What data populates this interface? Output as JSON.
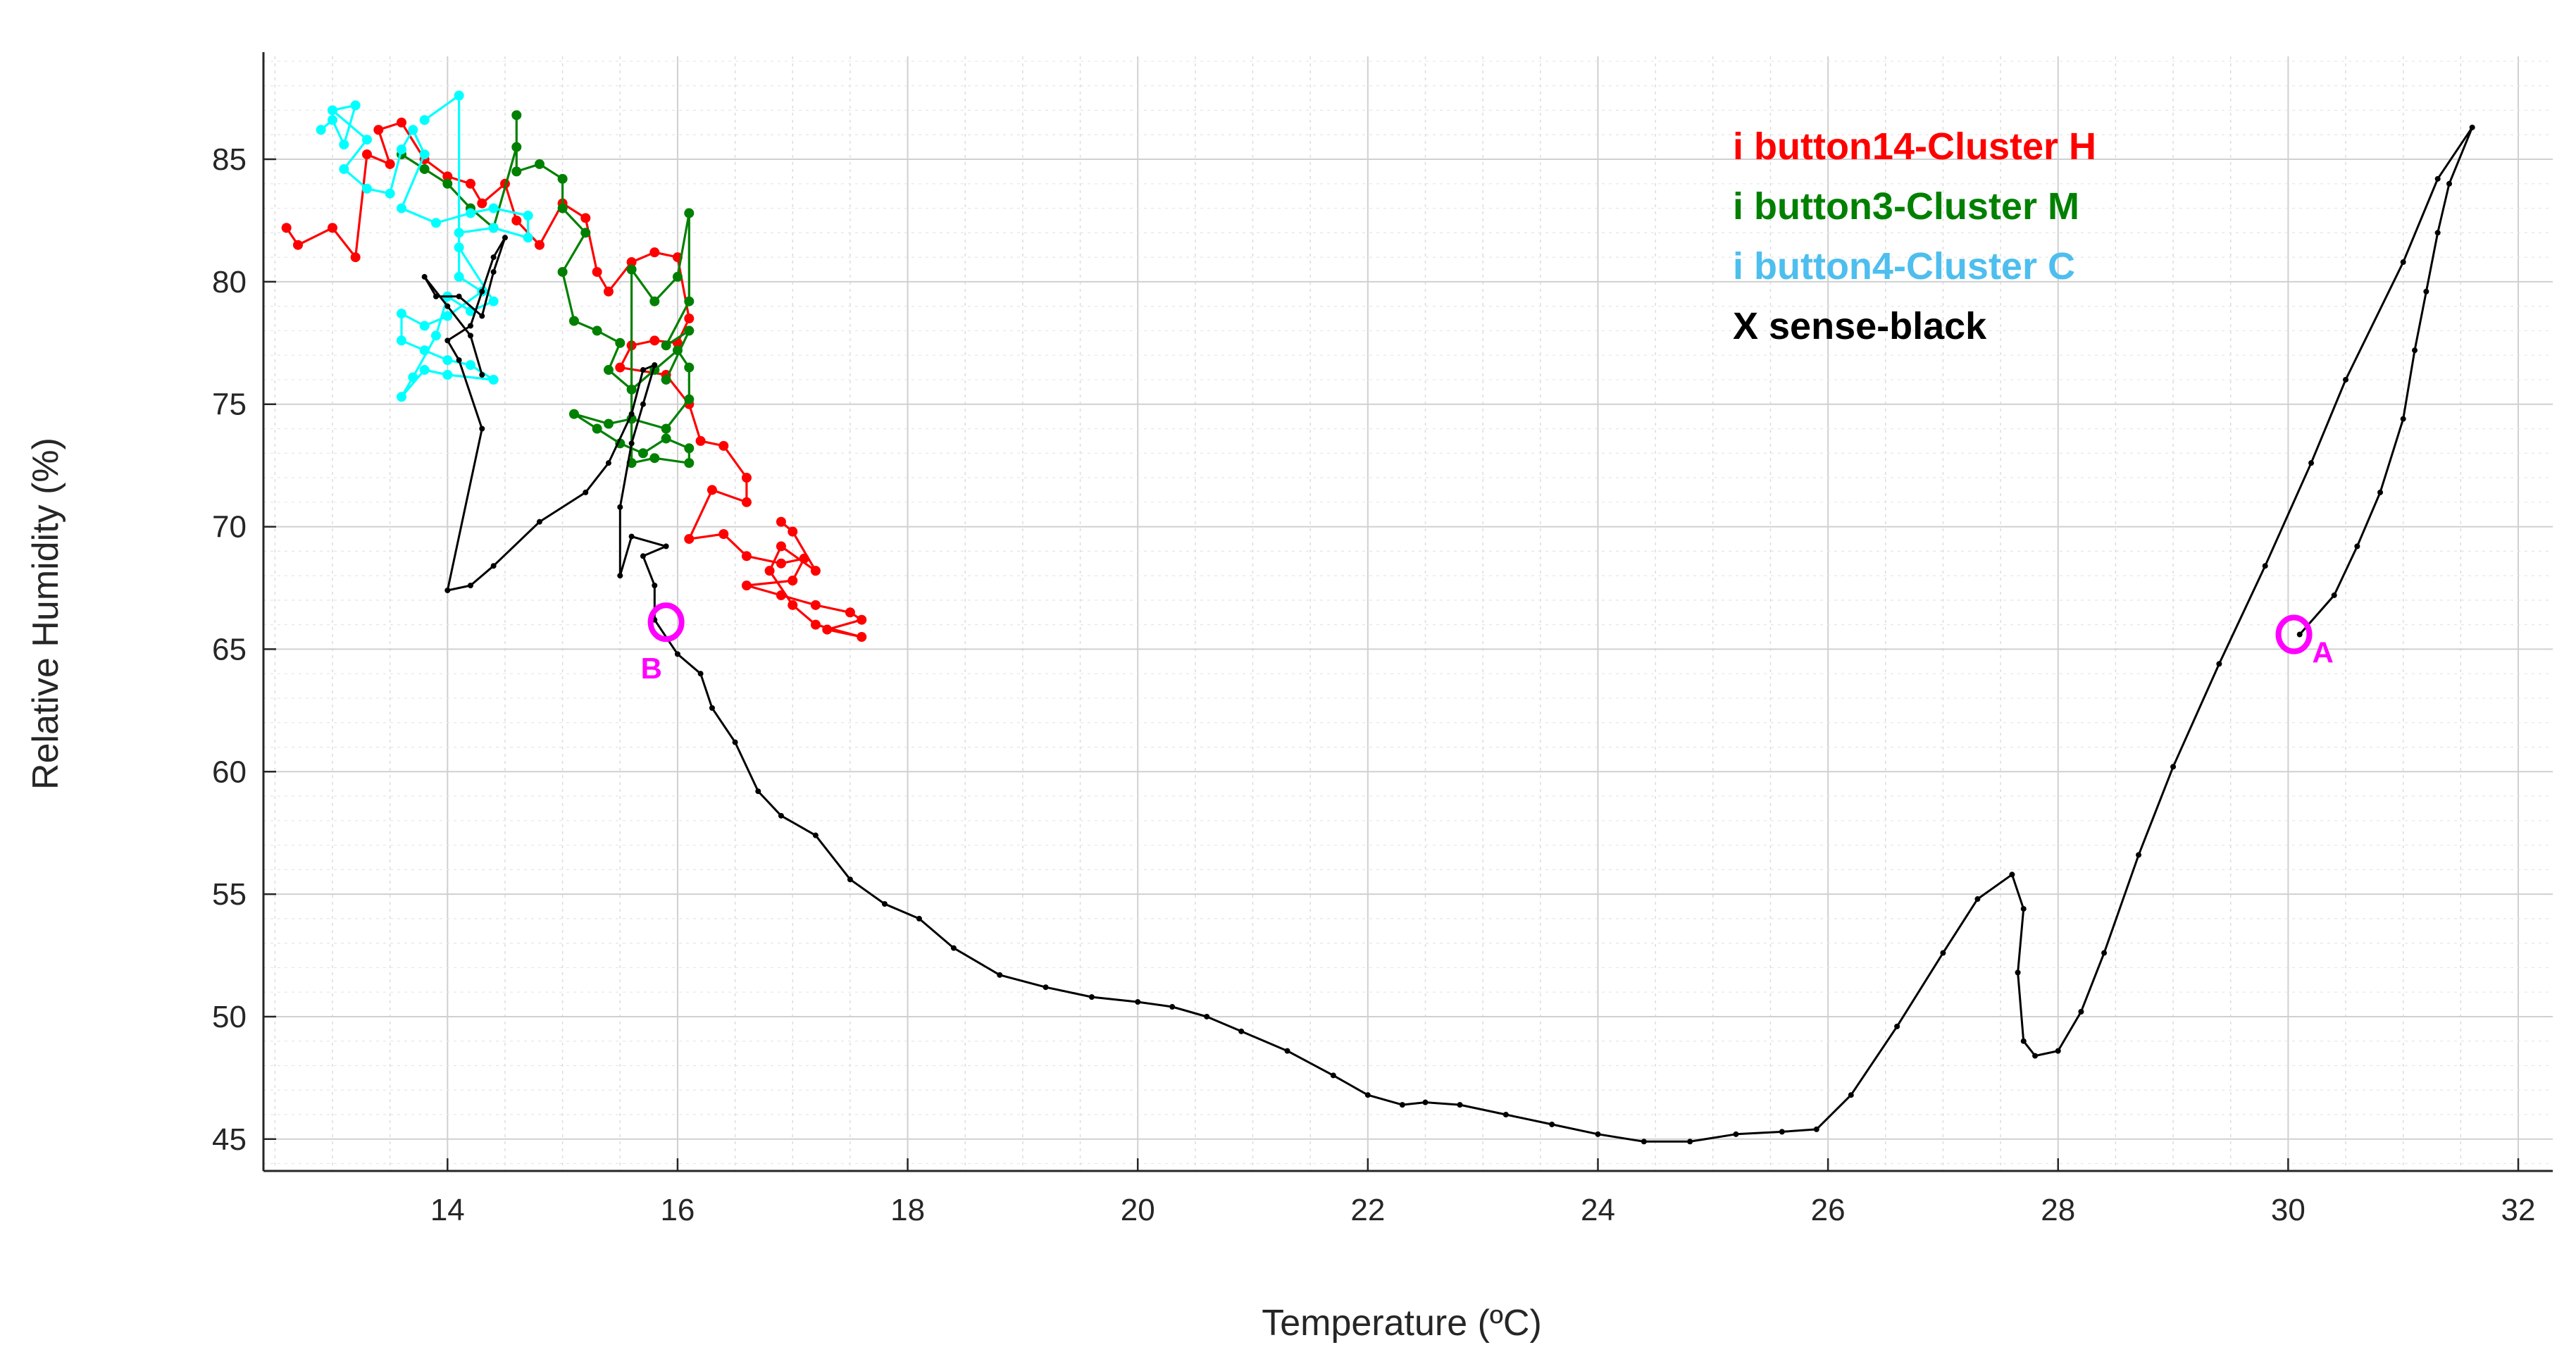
{
  "chart_data": {
    "type": "scatter",
    "title": "",
    "xlabel": "Temperature (ºC)",
    "ylabel": "Relative Humidity (%)",
    "xlim": [
      12.4,
      32.3
    ],
    "ylim": [
      43.7,
      89.2
    ],
    "xticks": [
      14,
      16,
      18,
      20,
      22,
      24,
      26,
      28,
      30,
      32
    ],
    "yticks": [
      45,
      50,
      55,
      60,
      65,
      70,
      75,
      80,
      85
    ],
    "xminor_step": 0.5,
    "ymajor_grid_step": 5,
    "grid": true,
    "legend_position": "top-right",
    "series": [
      {
        "name": "i button14-Cluster H",
        "color": "#ff0000",
        "points": [
          [
            12.6,
            82.2
          ],
          [
            12.7,
            81.5
          ],
          [
            13.0,
            82.2
          ],
          [
            13.2,
            81.0
          ],
          [
            13.3,
            85.2
          ],
          [
            13.5,
            84.8
          ],
          [
            13.4,
            86.2
          ],
          [
            13.6,
            86.5
          ],
          [
            13.8,
            85.0
          ],
          [
            14.0,
            84.3
          ],
          [
            14.2,
            84.0
          ],
          [
            14.3,
            83.2
          ],
          [
            14.5,
            84.0
          ],
          [
            14.6,
            82.5
          ],
          [
            14.8,
            81.5
          ],
          [
            15.0,
            83.2
          ],
          [
            15.2,
            82.6
          ],
          [
            15.3,
            80.4
          ],
          [
            15.4,
            79.6
          ],
          [
            15.6,
            80.8
          ],
          [
            15.8,
            81.2
          ],
          [
            16.0,
            81.0
          ],
          [
            16.1,
            78.5
          ],
          [
            16.0,
            77.5
          ],
          [
            15.8,
            77.6
          ],
          [
            15.6,
            77.4
          ],
          [
            15.5,
            76.5
          ],
          [
            15.9,
            76.2
          ],
          [
            16.1,
            75.0
          ],
          [
            16.2,
            73.5
          ],
          [
            16.4,
            73.3
          ],
          [
            16.6,
            72.0
          ],
          [
            16.6,
            71.0
          ],
          [
            16.3,
            71.5
          ],
          [
            16.1,
            69.5
          ],
          [
            16.4,
            69.7
          ],
          [
            16.6,
            68.8
          ],
          [
            16.9,
            68.5
          ],
          [
            17.1,
            68.7
          ],
          [
            17.0,
            67.8
          ],
          [
            16.6,
            67.6
          ],
          [
            16.9,
            67.2
          ],
          [
            17.2,
            66.8
          ],
          [
            17.5,
            66.5
          ],
          [
            17.6,
            66.2
          ],
          [
            17.3,
            65.8
          ],
          [
            17.6,
            65.5
          ],
          [
            17.2,
            66.0
          ],
          [
            17.0,
            66.8
          ],
          [
            16.8,
            68.2
          ],
          [
            16.9,
            69.2
          ],
          [
            17.2,
            68.2
          ],
          [
            17.0,
            69.8
          ],
          [
            16.9,
            70.2
          ]
        ]
      },
      {
        "name": "i button3-Cluster M",
        "color": "#008000",
        "points": [
          [
            13.6,
            85.2
          ],
          [
            13.8,
            84.6
          ],
          [
            14.0,
            84.0
          ],
          [
            14.2,
            83.0
          ],
          [
            14.4,
            82.2
          ],
          [
            14.6,
            85.5
          ],
          [
            14.6,
            86.8
          ],
          [
            14.6,
            84.5
          ],
          [
            14.8,
            84.8
          ],
          [
            15.0,
            84.2
          ],
          [
            15.0,
            83.0
          ],
          [
            15.2,
            82.0
          ],
          [
            15.0,
            80.4
          ],
          [
            15.1,
            78.4
          ],
          [
            15.3,
            78.0
          ],
          [
            15.5,
            77.5
          ],
          [
            15.4,
            76.4
          ],
          [
            15.6,
            75.6
          ],
          [
            15.8,
            76.4
          ],
          [
            16.0,
            77.2
          ],
          [
            16.1,
            76.5
          ],
          [
            16.1,
            75.2
          ],
          [
            15.9,
            74.0
          ],
          [
            15.6,
            74.4
          ],
          [
            15.4,
            74.2
          ],
          [
            15.1,
            74.6
          ],
          [
            15.3,
            74.0
          ],
          [
            15.5,
            73.4
          ],
          [
            15.7,
            73.0
          ],
          [
            15.9,
            73.6
          ],
          [
            16.1,
            73.2
          ],
          [
            16.1,
            72.6
          ],
          [
            15.8,
            72.8
          ],
          [
            15.6,
            72.6
          ],
          [
            15.6,
            80.5
          ],
          [
            15.8,
            79.2
          ],
          [
            16.0,
            80.2
          ],
          [
            16.1,
            82.8
          ],
          [
            16.1,
            79.2
          ],
          [
            15.9,
            77.4
          ],
          [
            16.1,
            78.0
          ],
          [
            15.9,
            76.0
          ]
        ]
      },
      {
        "name": "i button4-Cluster C",
        "color": "#00ffff",
        "legend_color": "#4dbeee",
        "points": [
          [
            12.9,
            86.2
          ],
          [
            13.0,
            86.6
          ],
          [
            13.1,
            85.6
          ],
          [
            13.2,
            87.2
          ],
          [
            13.0,
            87.0
          ],
          [
            13.3,
            85.8
          ],
          [
            13.1,
            84.6
          ],
          [
            13.3,
            83.8
          ],
          [
            13.5,
            83.6
          ],
          [
            13.6,
            85.4
          ],
          [
            13.7,
            86.2
          ],
          [
            13.8,
            85.2
          ],
          [
            13.6,
            83.0
          ],
          [
            13.9,
            82.4
          ],
          [
            14.2,
            82.8
          ],
          [
            14.4,
            83.0
          ],
          [
            14.7,
            82.7
          ],
          [
            14.7,
            81.8
          ],
          [
            14.4,
            82.2
          ],
          [
            14.1,
            82.0
          ],
          [
            14.1,
            80.2
          ],
          [
            14.3,
            79.6
          ],
          [
            14.0,
            78.6
          ],
          [
            13.8,
            78.2
          ],
          [
            13.6,
            78.7
          ],
          [
            13.6,
            77.6
          ],
          [
            13.8,
            77.2
          ],
          [
            14.0,
            76.8
          ],
          [
            14.2,
            76.6
          ],
          [
            14.4,
            76.0
          ],
          [
            14.0,
            76.2
          ],
          [
            13.8,
            76.4
          ],
          [
            13.6,
            75.3
          ],
          [
            13.7,
            76.1
          ],
          [
            13.9,
            77.8
          ],
          [
            14.0,
            79.4
          ],
          [
            14.2,
            78.8
          ],
          [
            14.4,
            79.2
          ],
          [
            14.1,
            81.4
          ],
          [
            14.1,
            87.6
          ],
          [
            13.8,
            86.6
          ]
        ]
      },
      {
        "name": "X sense-black",
        "color": "#000000",
        "points": [
          [
            30.1,
            65.6
          ],
          [
            30.4,
            67.2
          ],
          [
            30.6,
            69.2
          ],
          [
            30.8,
            71.4
          ],
          [
            31.0,
            74.4
          ],
          [
            31.1,
            77.2
          ],
          [
            31.2,
            79.6
          ],
          [
            31.3,
            82.0
          ],
          [
            31.4,
            84.0
          ],
          [
            31.6,
            86.3
          ],
          [
            31.3,
            84.2
          ],
          [
            31.0,
            80.8
          ],
          [
            30.5,
            76.0
          ],
          [
            30.2,
            72.6
          ],
          [
            29.8,
            68.4
          ],
          [
            29.4,
            64.4
          ],
          [
            29.0,
            60.2
          ],
          [
            28.7,
            56.6
          ],
          [
            28.4,
            52.6
          ],
          [
            28.2,
            50.2
          ],
          [
            28.0,
            48.6
          ],
          [
            27.8,
            48.4
          ],
          [
            27.7,
            49.0
          ],
          [
            27.65,
            51.8
          ],
          [
            27.7,
            54.4
          ],
          [
            27.6,
            55.8
          ],
          [
            27.3,
            54.8
          ],
          [
            27.0,
            52.6
          ],
          [
            26.6,
            49.6
          ],
          [
            26.2,
            46.8
          ],
          [
            25.9,
            45.4
          ],
          [
            25.6,
            45.3
          ],
          [
            25.2,
            45.2
          ],
          [
            24.8,
            44.9
          ],
          [
            24.4,
            44.9
          ],
          [
            24.0,
            45.2
          ],
          [
            23.6,
            45.6
          ],
          [
            23.2,
            46.0
          ],
          [
            22.8,
            46.4
          ],
          [
            22.5,
            46.5
          ],
          [
            22.3,
            46.4
          ],
          [
            22.0,
            46.8
          ],
          [
            21.7,
            47.6
          ],
          [
            21.3,
            48.6
          ],
          [
            20.9,
            49.4
          ],
          [
            20.6,
            50.0
          ],
          [
            20.3,
            50.4
          ],
          [
            20.0,
            50.6
          ],
          [
            19.6,
            50.8
          ],
          [
            19.2,
            51.2
          ],
          [
            18.8,
            51.7
          ],
          [
            18.4,
            52.8
          ],
          [
            18.1,
            54.0
          ],
          [
            17.8,
            54.6
          ],
          [
            17.5,
            55.6
          ],
          [
            17.2,
            57.4
          ],
          [
            16.9,
            58.2
          ],
          [
            16.7,
            59.2
          ],
          [
            16.5,
            61.2
          ],
          [
            16.3,
            62.6
          ],
          [
            16.2,
            64.0
          ],
          [
            16.0,
            64.8
          ],
          [
            15.8,
            66.2
          ],
          [
            15.8,
            67.6
          ],
          [
            15.7,
            68.8
          ],
          [
            15.9,
            69.2
          ],
          [
            15.6,
            69.6
          ],
          [
            15.5,
            68.0
          ],
          [
            15.5,
            70.8
          ],
          [
            15.6,
            73.4
          ],
          [
            15.7,
            75.0
          ],
          [
            15.8,
            76.6
          ],
          [
            15.7,
            76.4
          ],
          [
            15.6,
            74.6
          ],
          [
            15.4,
            72.6
          ],
          [
            15.2,
            71.4
          ],
          [
            14.8,
            70.2
          ],
          [
            14.4,
            68.4
          ],
          [
            14.2,
            67.6
          ],
          [
            14.0,
            67.4
          ],
          [
            14.3,
            74.0
          ],
          [
            14.1,
            76.8
          ],
          [
            14.0,
            77.6
          ],
          [
            14.2,
            78.2
          ],
          [
            14.3,
            79.6
          ],
          [
            14.4,
            81.0
          ],
          [
            14.5,
            81.8
          ],
          [
            14.4,
            80.4
          ],
          [
            14.3,
            78.6
          ],
          [
            14.1,
            79.4
          ],
          [
            13.9,
            79.4
          ],
          [
            13.8,
            80.2
          ],
          [
            14.0,
            79.0
          ],
          [
            14.2,
            77.8
          ],
          [
            14.3,
            76.2
          ]
        ]
      }
    ],
    "annotations": [
      {
        "label": "A",
        "x": 30.05,
        "y": 65.6,
        "color": "#ff00ff"
      },
      {
        "label": "B",
        "x": 15.9,
        "y": 66.1,
        "color": "#ff00ff"
      }
    ]
  }
}
